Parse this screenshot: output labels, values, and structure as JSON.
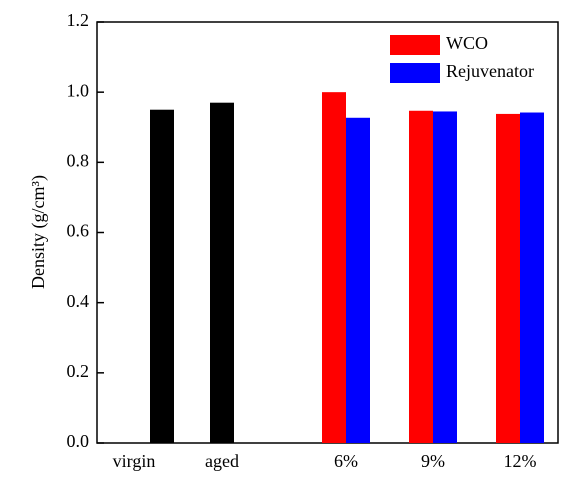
{
  "chart_data": {
    "type": "bar",
    "y_label": "Density (g/cm³)",
    "categories": [
      "virgin",
      "aged",
      "6%",
      "9%",
      "12%"
    ],
    "series": [
      {
        "color": "#000000",
        "values": [
          0.95,
          0.97,
          null,
          null,
          null
        ]
      },
      {
        "name": "WCO",
        "color": "#ff0000",
        "values": [
          null,
          null,
          1.0,
          0.947,
          0.938
        ]
      },
      {
        "name": "Rejuvenator",
        "color": "#0000ff",
        "values": [
          null,
          null,
          0.927,
          0.945,
          0.942
        ]
      }
    ],
    "ylim": [
      0,
      1.2
    ],
    "yticks": [
      {
        "value": 0,
        "label": "0.0"
      },
      0.2,
      0.4,
      0.6,
      0.8,
      {
        "value": 1,
        "label": "1.0"
      },
      1.2
    ],
    "legend": "upper right"
  }
}
